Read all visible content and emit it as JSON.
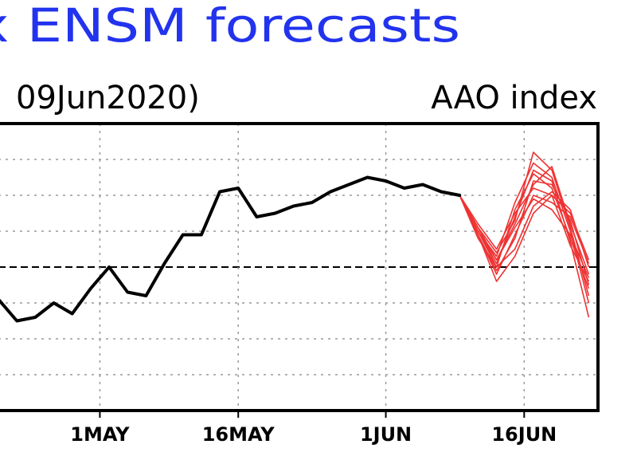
{
  "header": {
    "title": "x ENSM forecasts",
    "subtitle_left": "09Jun2020)",
    "subtitle_right": "AAO index"
  },
  "colors": {
    "title": "#2233ee",
    "observed": "#000000",
    "forecast": "#ee3333",
    "grid": "#9a9a9a",
    "axis": "#000000"
  },
  "chart_data": {
    "type": "line",
    "x_ticks": [
      {
        "date": "2020-05-01",
        "label": "1MAY"
      },
      {
        "date": "2020-05-16",
        "label": "16MAY"
      },
      {
        "date": "2020-06-01",
        "label": "1JUN"
      },
      {
        "date": "2020-06-16",
        "label": "16JUN"
      }
    ],
    "xlim": [
      "2020-04-20",
      "2020-06-24"
    ],
    "ylim": [
      -4,
      4
    ],
    "y_gridlines": [
      -3,
      -2,
      -1,
      0,
      1,
      2,
      3
    ],
    "zero_line": 0,
    "grid": true,
    "series": [
      {
        "role": "observed",
        "x": [
          "2020-04-20",
          "2020-04-22",
          "2020-04-24",
          "2020-04-26",
          "2020-04-28",
          "2020-04-30",
          "2020-05-02",
          "2020-05-04",
          "2020-05-06",
          "2020-05-08",
          "2020-05-10",
          "2020-05-12",
          "2020-05-14",
          "2020-05-16",
          "2020-05-18",
          "2020-05-20",
          "2020-05-22",
          "2020-05-24",
          "2020-05-26",
          "2020-05-28",
          "2020-05-30",
          "2020-06-01",
          "2020-06-03",
          "2020-06-05",
          "2020-06-07",
          "2020-06-09"
        ],
        "values": [
          -0.9,
          -1.5,
          -1.4,
          -1.0,
          -1.3,
          -0.6,
          0.0,
          -0.7,
          -0.8,
          0.1,
          0.9,
          0.9,
          2.1,
          2.2,
          1.4,
          1.5,
          1.7,
          1.8,
          2.1,
          2.3,
          2.5,
          2.4,
          2.2,
          2.3,
          2.1,
          2.0
        ]
      }
    ],
    "forecast_members": [
      {
        "x": [
          "2020-06-09",
          "2020-06-11",
          "2020-06-13",
          "2020-06-15",
          "2020-06-17",
          "2020-06-19",
          "2020-06-21",
          "2020-06-23"
        ],
        "values": [
          2.0,
          1.0,
          0.0,
          1.6,
          2.6,
          2.2,
          0.8,
          -0.6
        ]
      },
      {
        "x": [
          "2020-06-09",
          "2020-06-11",
          "2020-06-13",
          "2020-06-15",
          "2020-06-17",
          "2020-06-19",
          "2020-06-21",
          "2020-06-23"
        ],
        "values": [
          2.0,
          1.1,
          0.2,
          1.2,
          2.3,
          2.8,
          1.2,
          -0.2
        ]
      },
      {
        "x": [
          "2020-06-09",
          "2020-06-11",
          "2020-06-13",
          "2020-06-15",
          "2020-06-17",
          "2020-06-19",
          "2020-06-21",
          "2020-06-23"
        ],
        "values": [
          2.0,
          0.9,
          -0.2,
          0.9,
          2.0,
          1.8,
          1.4,
          0.1
        ]
      },
      {
        "x": [
          "2020-06-09",
          "2020-06-11",
          "2020-06-13",
          "2020-06-15",
          "2020-06-17",
          "2020-06-19",
          "2020-06-21",
          "2020-06-23"
        ],
        "values": [
          2.0,
          1.0,
          0.3,
          1.8,
          2.9,
          2.5,
          1.0,
          -1.0
        ]
      },
      {
        "x": [
          "2020-06-09",
          "2020-06-11",
          "2020-06-13",
          "2020-06-15",
          "2020-06-17",
          "2020-06-19",
          "2020-06-21",
          "2020-06-23"
        ],
        "values": [
          2.0,
          1.2,
          0.5,
          1.5,
          2.2,
          2.0,
          0.6,
          -0.4
        ]
      },
      {
        "x": [
          "2020-06-09",
          "2020-06-11",
          "2020-06-13",
          "2020-06-15",
          "2020-06-17",
          "2020-06-19",
          "2020-06-21",
          "2020-06-23"
        ],
        "values": [
          2.0,
          0.8,
          0.0,
          0.5,
          1.7,
          2.1,
          1.6,
          0.0
        ]
      },
      {
        "x": [
          "2020-06-09",
          "2020-06-11",
          "2020-06-13",
          "2020-06-15",
          "2020-06-17",
          "2020-06-19",
          "2020-06-21",
          "2020-06-23"
        ],
        "values": [
          2.0,
          1.1,
          0.4,
          1.3,
          3.2,
          2.7,
          1.1,
          -0.8
        ]
      },
      {
        "x": [
          "2020-06-09",
          "2020-06-11",
          "2020-06-13",
          "2020-06-15",
          "2020-06-17",
          "2020-06-19",
          "2020-06-21",
          "2020-06-23"
        ],
        "values": [
          2.0,
          0.9,
          -0.1,
          0.8,
          2.4,
          2.3,
          1.3,
          -0.5
        ]
      },
      {
        "x": [
          "2020-06-09",
          "2020-06-11",
          "2020-06-13",
          "2020-06-15",
          "2020-06-17",
          "2020-06-19",
          "2020-06-21",
          "2020-06-23"
        ],
        "values": [
          2.0,
          1.0,
          0.2,
          1.1,
          1.9,
          1.6,
          0.9,
          -0.3
        ]
      },
      {
        "x": [
          "2020-06-09",
          "2020-06-11",
          "2020-06-13",
          "2020-06-15",
          "2020-06-17",
          "2020-06-19",
          "2020-06-21",
          "2020-06-23"
        ],
        "values": [
          2.0,
          1.0,
          0.1,
          1.4,
          2.7,
          2.4,
          0.7,
          -1.4
        ]
      },
      {
        "x": [
          "2020-06-09",
          "2020-06-11",
          "2020-06-13",
          "2020-06-15",
          "2020-06-17",
          "2020-06-19",
          "2020-06-21",
          "2020-06-23"
        ],
        "values": [
          2.0,
          0.9,
          -0.4,
          0.3,
          1.5,
          2.0,
          1.5,
          0.2
        ]
      }
    ]
  }
}
